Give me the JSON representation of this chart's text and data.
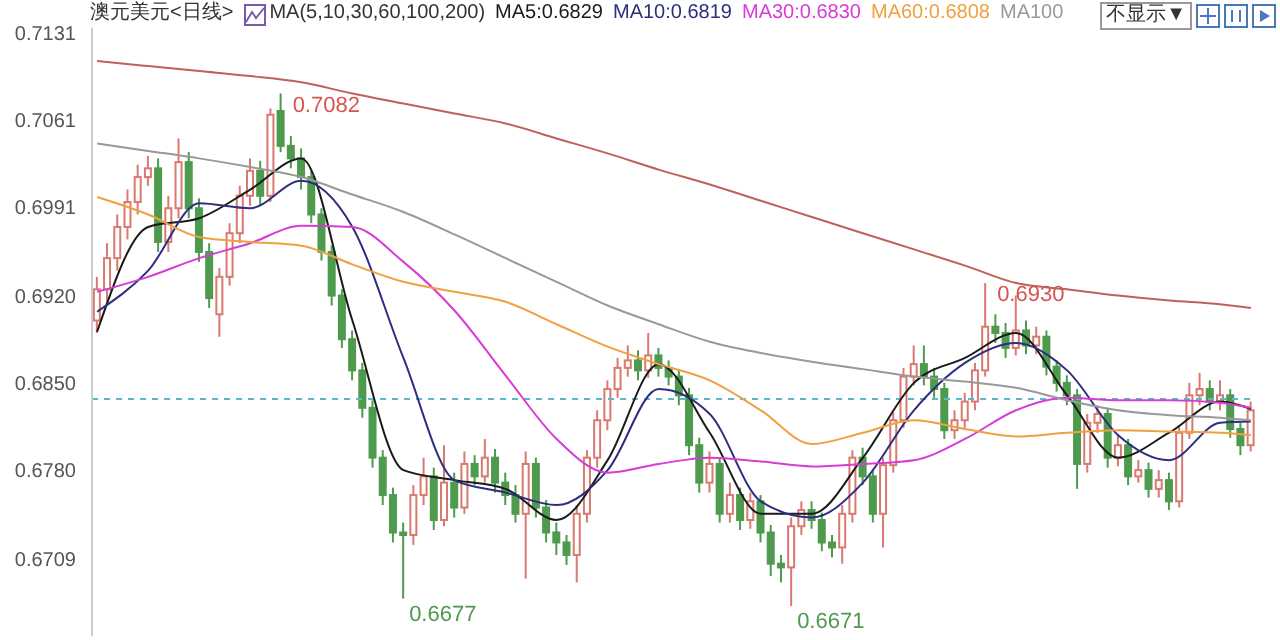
{
  "chart_data": {
    "type": "candlestick",
    "title": "澳元美元<日线>",
    "subtitle": "MA(5,10,30,60,100,200)",
    "categories": [
      null,
      null,
      null,
      null,
      null,
      null,
      null,
      null,
      null,
      null,
      null,
      null,
      null,
      null,
      null,
      null,
      null,
      null,
      null,
      null,
      null,
      null,
      null,
      null,
      null,
      null,
      null,
      null,
      null,
      null,
      null,
      null,
      null,
      null,
      null,
      null,
      null,
      null,
      null,
      null,
      null,
      null,
      null,
      null,
      null,
      null,
      null,
      null,
      null,
      null,
      null,
      null,
      null,
      null,
      null,
      null,
      null,
      null,
      null,
      null,
      null,
      null,
      null,
      null,
      null,
      null,
      null,
      null,
      null,
      null,
      null,
      null,
      null,
      null,
      null,
      null,
      null,
      null,
      null,
      null,
      null,
      null,
      null,
      null,
      null,
      null,
      null,
      null,
      null,
      null,
      null,
      null,
      null,
      null,
      null,
      null,
      null,
      null,
      null,
      null,
      null,
      null,
      null,
      null,
      null,
      null,
      null,
      null,
      null,
      null,
      null,
      null,
      null,
      null
    ],
    "ohlc": [
      [
        0.69,
        0.6935,
        0.689,
        0.6925
      ],
      [
        0.6925,
        0.6962,
        0.6915,
        0.695
      ],
      [
        0.695,
        0.6985,
        0.694,
        0.6975
      ],
      [
        0.6975,
        0.7005,
        0.6965,
        0.6995
      ],
      [
        0.6995,
        0.7025,
        0.6985,
        0.7015
      ],
      [
        0.7015,
        0.7032,
        0.7008,
        0.7022
      ],
      [
        0.7022,
        0.703,
        0.6955,
        0.6963
      ],
      [
        0.6963,
        0.7,
        0.6955,
        0.699
      ],
      [
        0.699,
        0.7046,
        0.6982,
        0.7027
      ],
      [
        0.7027,
        0.7035,
        0.6982,
        0.699
      ],
      [
        0.699,
        0.6998,
        0.6947,
        0.6955
      ],
      [
        0.6955,
        0.6962,
        0.691,
        0.6918
      ],
      [
        0.6905,
        0.6942,
        0.6887,
        0.6935
      ],
      [
        0.6935,
        0.6978,
        0.6928,
        0.697
      ],
      [
        0.697,
        0.7008,
        0.6962,
        0.7
      ],
      [
        0.7,
        0.703,
        0.6992,
        0.702
      ],
      [
        0.702,
        0.7028,
        0.6992,
        0.7
      ],
      [
        0.7,
        0.707,
        0.6995,
        0.7065
      ],
      [
        0.7068,
        0.7082,
        0.7035,
        0.704
      ],
      [
        0.704,
        0.7048,
        0.7022,
        0.703
      ],
      [
        0.703,
        0.7038,
        0.7005,
        0.7015
      ],
      [
        0.7015,
        0.702,
        0.6978,
        0.6985
      ],
      [
        0.6985,
        0.699,
        0.6948,
        0.6955
      ],
      [
        0.6955,
        0.696,
        0.6912,
        0.692
      ],
      [
        0.692,
        0.6925,
        0.6878,
        0.6885
      ],
      [
        0.6885,
        0.6892,
        0.6852,
        0.686
      ],
      [
        0.686,
        0.6866,
        0.6822,
        0.683
      ],
      [
        0.683,
        0.6836,
        0.6782,
        0.679
      ],
      [
        0.679,
        0.6796,
        0.6752,
        0.676
      ],
      [
        0.676,
        0.6766,
        0.6722,
        0.673
      ],
      [
        0.673,
        0.6738,
        0.6677,
        0.6728
      ],
      [
        0.6728,
        0.6768,
        0.672,
        0.676
      ],
      [
        0.676,
        0.679,
        0.6752,
        0.6775
      ],
      [
        0.6775,
        0.6782,
        0.6732,
        0.674
      ],
      [
        0.674,
        0.68,
        0.6735,
        0.677
      ],
      [
        0.677,
        0.6778,
        0.6742,
        0.675
      ],
      [
        0.675,
        0.6795,
        0.6745,
        0.6785
      ],
      [
        0.6785,
        0.6792,
        0.6768,
        0.6775
      ],
      [
        0.6775,
        0.6805,
        0.677,
        0.679
      ],
      [
        0.679,
        0.6797,
        0.6762,
        0.677
      ],
      [
        0.677,
        0.6778,
        0.6752,
        0.676
      ],
      [
        0.676,
        0.6768,
        0.6738,
        0.6745
      ],
      [
        0.6745,
        0.6795,
        0.6693,
        0.6785
      ],
      [
        0.6785,
        0.679,
        0.6742,
        0.675
      ],
      [
        0.675,
        0.6756,
        0.6722,
        0.673
      ],
      [
        0.673,
        0.6738,
        0.6712,
        0.6722
      ],
      [
        0.6722,
        0.6728,
        0.6704,
        0.6712
      ],
      [
        0.6712,
        0.6752,
        0.669,
        0.6745
      ],
      [
        0.6745,
        0.6796,
        0.6738,
        0.679
      ],
      [
        0.679,
        0.6828,
        0.6782,
        0.682
      ],
      [
        0.682,
        0.6852,
        0.6812,
        0.6845
      ],
      [
        0.6845,
        0.687,
        0.6838,
        0.6862
      ],
      [
        0.6862,
        0.688,
        0.6855,
        0.6868
      ],
      [
        0.6868,
        0.6876,
        0.6852,
        0.686
      ],
      [
        0.686,
        0.689,
        0.6854,
        0.6872
      ],
      [
        0.6872,
        0.6878,
        0.6855,
        0.6862
      ],
      [
        0.6862,
        0.6868,
        0.6848,
        0.6855
      ],
      [
        0.6855,
        0.686,
        0.6832,
        0.684
      ],
      [
        0.684,
        0.6846,
        0.6792,
        0.68
      ],
      [
        0.68,
        0.6806,
        0.6762,
        0.677
      ],
      [
        0.677,
        0.6795,
        0.6762,
        0.6785
      ],
      [
        0.6785,
        0.679,
        0.6738,
        0.6745
      ],
      [
        0.6745,
        0.677,
        0.6738,
        0.676
      ],
      [
        0.676,
        0.6766,
        0.6732,
        0.674
      ],
      [
        0.674,
        0.6762,
        0.6733,
        0.6755
      ],
      [
        0.6755,
        0.676,
        0.6722,
        0.673
      ],
      [
        0.673,
        0.6736,
        0.6695,
        0.6705
      ],
      [
        0.6705,
        0.6712,
        0.669,
        0.6702
      ],
      [
        0.6702,
        0.6742,
        0.6671,
        0.6735
      ],
      [
        0.6735,
        0.6755,
        0.6728,
        0.6748
      ],
      [
        0.6748,
        0.6755,
        0.6733,
        0.674
      ],
      [
        0.674,
        0.6746,
        0.6715,
        0.6722
      ],
      [
        0.6722,
        0.6728,
        0.671,
        0.6718
      ],
      [
        0.6718,
        0.6752,
        0.6705,
        0.6745
      ],
      [
        0.6745,
        0.6796,
        0.6738,
        0.679
      ],
      [
        0.679,
        0.6798,
        0.6768,
        0.6775
      ],
      [
        0.6775,
        0.678,
        0.6738,
        0.6745
      ],
      [
        0.6745,
        0.679,
        0.6718,
        0.6784
      ],
      [
        0.6784,
        0.6826,
        0.6778,
        0.682
      ],
      [
        0.682,
        0.6862,
        0.6814,
        0.6855
      ],
      [
        0.6855,
        0.688,
        0.6848,
        0.6865
      ],
      [
        0.6865,
        0.688,
        0.6848,
        0.6855
      ],
      [
        0.6855,
        0.6862,
        0.6838,
        0.6845
      ],
      [
        0.6845,
        0.685,
        0.6805,
        0.6812
      ],
      [
        0.6812,
        0.6828,
        0.6805,
        0.682
      ],
      [
        0.682,
        0.6842,
        0.6814,
        0.6835
      ],
      [
        0.6835,
        0.6866,
        0.6828,
        0.686
      ],
      [
        0.686,
        0.693,
        0.6855,
        0.6895
      ],
      [
        0.6895,
        0.6905,
        0.6882,
        0.689
      ],
      [
        0.689,
        0.6898,
        0.687,
        0.6878
      ],
      [
        0.6878,
        0.692,
        0.6872,
        0.6892
      ],
      [
        0.6892,
        0.69,
        0.6873,
        0.688
      ],
      [
        0.688,
        0.6895,
        0.6873,
        0.6887
      ],
      [
        0.6887,
        0.6892,
        0.6856,
        0.6863
      ],
      [
        0.6863,
        0.6868,
        0.6843,
        0.685
      ],
      [
        0.685,
        0.6856,
        0.6832,
        0.684
      ],
      [
        0.684,
        0.6845,
        0.6765,
        0.6785
      ],
      [
        0.6785,
        0.6825,
        0.6778,
        0.6818
      ],
      [
        0.6818,
        0.6832,
        0.681,
        0.6825
      ],
      [
        0.6825,
        0.683,
        0.6782,
        0.679
      ],
      [
        0.679,
        0.6808,
        0.6783,
        0.68
      ],
      [
        0.68,
        0.6805,
        0.6768,
        0.6775
      ],
      [
        0.6775,
        0.6788,
        0.677,
        0.678
      ],
      [
        0.678,
        0.6786,
        0.6758,
        0.6765
      ],
      [
        0.6765,
        0.678,
        0.6758,
        0.6772
      ],
      [
        0.6772,
        0.6778,
        0.6748,
        0.6755
      ],
      [
        0.6755,
        0.6816,
        0.675,
        0.681
      ],
      [
        0.681,
        0.685,
        0.6805,
        0.684
      ],
      [
        0.684,
        0.6858,
        0.6832,
        0.6845
      ],
      [
        0.6845,
        0.6852,
        0.6828,
        0.6835
      ],
      [
        0.6835,
        0.6852,
        0.6828,
        0.684
      ],
      [
        0.684,
        0.6845,
        0.6806,
        0.6813
      ],
      [
        0.6813,
        0.6818,
        0.6792,
        0.68
      ],
      [
        0.68,
        0.6835,
        0.6795,
        0.6828
      ]
    ],
    "series": [
      {
        "type": "line",
        "name": "MA5:0.6829",
        "color": "#1a1a1a",
        "values": [
          0.6891,
          null,
          null,
          null,
          null,
          0.6975,
          null,
          null,
          null,
          null,
          0.6982,
          null,
          null,
          null,
          null,
          0.7005,
          null,
          null,
          null,
          null,
          0.703,
          null,
          null,
          null,
          null,
          0.69,
          null,
          null,
          null,
          null,
          0.678,
          null,
          null,
          null,
          null,
          0.6772,
          null,
          null,
          null,
          null,
          0.6765,
          null,
          null,
          null,
          null,
          0.674,
          null,
          null,
          null,
          null,
          0.6788,
          null,
          null,
          null,
          null,
          0.6865,
          null,
          null,
          null,
          null,
          0.681,
          null,
          null,
          null,
          null,
          0.6745,
          null,
          null,
          null,
          null,
          0.6745,
          null,
          null,
          null,
          null,
          0.679,
          null,
          null,
          null,
          null,
          0.685,
          null,
          null,
          null,
          null,
          0.687,
          null,
          null,
          null,
          null,
          0.689,
          null,
          null,
          null,
          null,
          0.684,
          null,
          null,
          null,
          null,
          0.679,
          null,
          null,
          null,
          null,
          0.681,
          null,
          null,
          null,
          null,
          0.6835,
          null,
          null,
          0.6829
        ]
      },
      {
        "type": "line",
        "name": "MA10:0.6819",
        "color": "#2e2e80",
        "values": [
          0.6907,
          null,
          null,
          null,
          null,
          0.694,
          null,
          null,
          null,
          null,
          0.6994,
          null,
          null,
          null,
          null,
          0.699,
          null,
          null,
          null,
          null,
          0.7012,
          null,
          null,
          null,
          null,
          0.6975,
          null,
          null,
          null,
          null,
          0.687,
          null,
          null,
          null,
          null,
          0.6772,
          null,
          null,
          null,
          null,
          0.6762,
          null,
          null,
          null,
          null,
          0.6752,
          null,
          null,
          null,
          null,
          0.678,
          null,
          null,
          null,
          null,
          0.6845,
          null,
          null,
          null,
          null,
          0.6825,
          null,
          null,
          null,
          null,
          0.6755,
          null,
          null,
          null,
          null,
          0.6742,
          null,
          null,
          null,
          null,
          0.677,
          null,
          null,
          null,
          null,
          0.6828,
          null,
          null,
          null,
          null,
          0.6866,
          null,
          null,
          null,
          null,
          0.6882,
          null,
          null,
          null,
          null,
          0.686,
          null,
          null,
          null,
          null,
          0.6808,
          null,
          null,
          null,
          null,
          0.6788,
          null,
          null,
          null,
          null,
          0.6818,
          null,
          null,
          0.6819
        ]
      },
      {
        "type": "line",
        "name": "MA30:0.6830",
        "color": "#d63cd6",
        "values": [
          0.6923,
          null,
          null,
          null,
          null,
          0.6935,
          null,
          null,
          null,
          null,
          0.695,
          null,
          null,
          null,
          null,
          0.6962,
          null,
          null,
          null,
          null,
          0.6976,
          null,
          null,
          null,
          null,
          0.6975,
          null,
          null,
          null,
          null,
          0.6947,
          null,
          null,
          null,
          null,
          0.6908,
          null,
          null,
          null,
          null,
          0.6856,
          null,
          null,
          null,
          null,
          0.6805,
          null,
          null,
          null,
          null,
          0.6778,
          null,
          null,
          null,
          null,
          0.6785,
          null,
          null,
          null,
          null,
          0.679,
          null,
          null,
          null,
          null,
          0.6787,
          null,
          null,
          null,
          null,
          0.6783,
          null,
          null,
          null,
          null,
          0.6785,
          null,
          null,
          null,
          null,
          0.6788,
          null,
          null,
          null,
          null,
          0.6805,
          null,
          null,
          null,
          null,
          0.6828,
          null,
          null,
          null,
          null,
          0.6838,
          null,
          null,
          null,
          null,
          0.6836,
          null,
          null,
          null,
          null,
          0.6836,
          null,
          null,
          null,
          null,
          0.6834,
          null,
          null,
          0.683
        ]
      },
      {
        "type": "line",
        "name": "MA60:0.6808",
        "color": "#f0a040",
        "values": [
          0.6999,
          null,
          null,
          null,
          null,
          0.6985,
          null,
          null,
          null,
          null,
          0.6967,
          null,
          null,
          null,
          null,
          0.6963,
          null,
          null,
          null,
          null,
          0.696,
          null,
          null,
          null,
          null,
          0.6945,
          null,
          null,
          null,
          null,
          0.6931,
          null,
          null,
          null,
          null,
          0.6923,
          null,
          null,
          null,
          null,
          0.6915,
          null,
          null,
          null,
          null,
          0.6897,
          null,
          null,
          null,
          null,
          0.6879,
          null,
          null,
          null,
          null,
          0.6865,
          null,
          null,
          null,
          null,
          0.6852,
          null,
          null,
          null,
          null,
          0.6828,
          null,
          null,
          null,
          null,
          0.6801,
          null,
          null,
          null,
          null,
          0.681,
          null,
          null,
          null,
          null,
          0.682,
          null,
          null,
          null,
          null,
          0.6813,
          null,
          null,
          null,
          null,
          0.6807,
          null,
          null,
          null,
          null,
          0.681,
          null,
          null,
          null,
          null,
          0.6812,
          null,
          null,
          null,
          null,
          0.6811,
          null,
          null,
          null,
          null,
          0.681,
          null,
          null,
          0.6808
        ]
      },
      {
        "type": "line",
        "name": "MA100",
        "color": "#999999",
        "values": [
          0.7042,
          null,
          null,
          null,
          null,
          0.7036,
          null,
          null,
          null,
          null,
          0.703,
          null,
          null,
          null,
          null,
          0.7023,
          null,
          null,
          null,
          null,
          0.7015,
          null,
          null,
          null,
          null,
          0.7001,
          null,
          null,
          null,
          null,
          0.6987,
          null,
          null,
          null,
          null,
          0.6969,
          null,
          null,
          null,
          null,
          0.695,
          null,
          null,
          null,
          null,
          0.6931,
          null,
          null,
          null,
          null,
          0.6912,
          null,
          null,
          null,
          null,
          0.6897,
          null,
          null,
          null,
          null,
          0.6883,
          null,
          null,
          null,
          null,
          0.6874,
          null,
          null,
          null,
          null,
          0.6867,
          null,
          null,
          null,
          null,
          0.6861,
          null,
          null,
          null,
          null,
          0.6855,
          null,
          null,
          null,
          null,
          0.6851,
          null,
          null,
          null,
          null,
          0.6846,
          null,
          null,
          null,
          null,
          0.6836,
          null,
          null,
          null,
          null,
          0.6828,
          null,
          null,
          null,
          null,
          0.6824,
          null,
          null,
          null,
          null,
          0.6822,
          null,
          null,
          0.682
        ]
      },
      {
        "type": "line",
        "color": "#c0605a",
        "values": [
          0.7108,
          null,
          null,
          null,
          null,
          0.7104,
          null,
          null,
          null,
          null,
          0.71,
          null,
          null,
          null,
          null,
          0.7096,
          null,
          null,
          null,
          null,
          0.7091,
          null,
          null,
          null,
          null,
          0.7082,
          null,
          null,
          null,
          null,
          0.7074,
          null,
          null,
          null,
          null,
          0.7066,
          null,
          null,
          null,
          null,
          0.7058,
          null,
          null,
          null,
          null,
          0.7046,
          null,
          null,
          null,
          null,
          0.7034,
          null,
          null,
          null,
          null,
          0.7021,
          null,
          null,
          null,
          null,
          0.7009,
          null,
          null,
          null,
          null,
          0.6996,
          null,
          null,
          null,
          null,
          0.6983,
          null,
          null,
          null,
          null,
          0.697,
          null,
          null,
          null,
          null,
          0.6957,
          null,
          null,
          null,
          null,
          0.6944,
          null,
          null,
          null,
          null,
          0.693,
          null,
          null,
          null,
          null,
          0.6925,
          null,
          null,
          null,
          null,
          0.692,
          null,
          null,
          null,
          null,
          0.6916,
          null,
          null,
          null,
          null,
          0.6913,
          null,
          null,
          0.691
        ]
      }
    ],
    "ylim": [
      0.6647,
      0.7157
    ],
    "yticks": [
      0.6709,
      {
        "value": 0.678,
        "label": "0.6780"
      },
      {
        "value": 0.685,
        "label": "0.6850"
      },
      {
        "value": 0.692,
        "label": "0.6920"
      },
      0.6991,
      0.7061,
      0.7131
    ],
    "ref_lines": [
      {
        "axis": "y",
        "value": 0.6837,
        "color": "#5bb8c8",
        "line_style": "dashed"
      }
    ],
    "annotations": [
      "不显示▼",
      {
        "text": "0.7082",
        "y": 0.7082
      },
      "0.6677",
      "0.6671",
      {
        "text": "0.6930",
        "y": 0.693
      }
    ],
    "legend": "top",
    "grid": false,
    "tick_labels": "y"
  }
}
